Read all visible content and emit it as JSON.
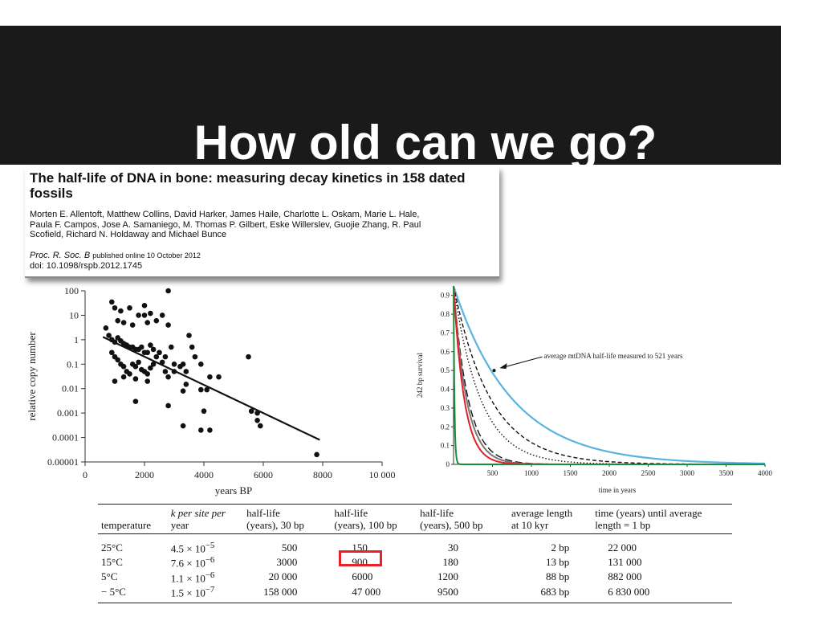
{
  "slide": {
    "title": "How old can we go?"
  },
  "paper": {
    "title": "The half-life of DNA in bone: measuring decay kinetics in 158 dated fossils",
    "authors_line1": "Morten E. Allentoft, Matthew Collins, David Harker, James Haile, Charlotte L. Oskam, Marie L. Hale,",
    "authors_line2": "Paula F. Campos, Jose A. Samaniego, M. Thomas P. Gilbert, Eske Willerslev, Guojie Zhang, R. Paul",
    "authors_line3": "Scofield, Richard N. Holdaway and Michael Bunce",
    "journal": "Proc. R. Soc. B",
    "published": "published online 10 October 2012",
    "doi": "doi: 10.1098/rspb.2012.1745"
  },
  "chart_data": [
    {
      "type": "scatter",
      "xlabel": "years BP",
      "ylabel": "relative copy number",
      "xlim": [
        0,
        10000
      ],
      "ylim": [
        1e-05,
        100
      ],
      "log_y": true,
      "x_ticks": [
        "0",
        "2000",
        "4000",
        "6000",
        "8000",
        "10 000"
      ],
      "y_ticks": [
        "100",
        "10",
        "1",
        "0.1",
        "0.01",
        "0.001",
        "0.0001",
        "0.00001"
      ],
      "points": [
        [
          2800,
          100
        ],
        [
          900,
          35
        ],
        [
          1000,
          20
        ],
        [
          1500,
          20
        ],
        [
          2000,
          25
        ],
        [
          2200,
          12
        ],
        [
          2600,
          10
        ],
        [
          1200,
          15
        ],
        [
          1800,
          10
        ],
        [
          2000,
          10
        ],
        [
          700,
          3
        ],
        [
          1100,
          6
        ],
        [
          1300,
          5
        ],
        [
          1600,
          4
        ],
        [
          2100,
          5
        ],
        [
          2400,
          6
        ],
        [
          2800,
          4
        ],
        [
          3500,
          1.5
        ],
        [
          800,
          1.5
        ],
        [
          900,
          1
        ],
        [
          1000,
          0.8
        ],
        [
          1100,
          1.2
        ],
        [
          1200,
          0.9
        ],
        [
          1300,
          0.7
        ],
        [
          1400,
          0.6
        ],
        [
          1500,
          0.5
        ],
        [
          1600,
          0.5
        ],
        [
          1700,
          0.4
        ],
        [
          1800,
          0.4
        ],
        [
          1900,
          0.5
        ],
        [
          2000,
          0.3
        ],
        [
          2100,
          0.3
        ],
        [
          2200,
          0.6
        ],
        [
          2300,
          0.4
        ],
        [
          2500,
          0.3
        ],
        [
          2700,
          0.2
        ],
        [
          2900,
          0.5
        ],
        [
          3000,
          0.1
        ],
        [
          900,
          0.3
        ],
        [
          1000,
          0.2
        ],
        [
          1100,
          0.15
        ],
        [
          1200,
          0.1
        ],
        [
          1300,
          0.08
        ],
        [
          1400,
          0.05
        ],
        [
          1500,
          0.04
        ],
        [
          1600,
          0.1
        ],
        [
          1700,
          0.08
        ],
        [
          1800,
          0.12
        ],
        [
          1900,
          0.06
        ],
        [
          2000,
          0.05
        ],
        [
          2100,
          0.04
        ],
        [
          2200,
          0.07
        ],
        [
          2300,
          0.1
        ],
        [
          2400,
          0.2
        ],
        [
          2600,
          0.12
        ],
        [
          2700,
          0.05
        ],
        [
          2800,
          0.03
        ],
        [
          3000,
          0.05
        ],
        [
          3200,
          0.08
        ],
        [
          1000,
          0.02
        ],
        [
          1300,
          0.03
        ],
        [
          1700,
          0.025
        ],
        [
          2100,
          0.02
        ],
        [
          3300,
          0.1
        ],
        [
          3400,
          0.05
        ],
        [
          3600,
          0.5
        ],
        [
          3700,
          0.2
        ],
        [
          3900,
          0.1
        ],
        [
          4200,
          0.03
        ],
        [
          4500,
          0.03
        ],
        [
          3400,
          0.015
        ],
        [
          3300,
          0.008
        ],
        [
          3900,
          0.009
        ],
        [
          4100,
          0.009
        ],
        [
          2800,
          0.002
        ],
        [
          1700,
          0.003
        ],
        [
          3300,
          0.0003
        ],
        [
          3900,
          0.0002
        ],
        [
          4200,
          0.0002
        ],
        [
          4000,
          0.0012
        ],
        [
          5500,
          0.2
        ],
        [
          5600,
          0.0012
        ],
        [
          5800,
          0.001
        ],
        [
          5800,
          0.0005
        ],
        [
          5900,
          0.0003
        ],
        [
          7800,
          2e-05
        ]
      ],
      "trend": {
        "x": [
          600,
          7900
        ],
        "y": [
          1.3,
          8e-05
        ]
      }
    },
    {
      "type": "line",
      "xlabel": "time in years",
      "ylabel": "242 bp survival",
      "xlim": [
        0,
        4000
      ],
      "ylim": [
        0,
        0.95
      ],
      "x_ticks": [
        "500",
        "1000",
        "1500",
        "2000",
        "2500",
        "3000",
        "3500",
        "4000"
      ],
      "y_ticks": [
        "0",
        "0.1",
        "0.2",
        "0.3",
        "0.4",
        "0.5",
        "0.6",
        "0.7",
        "0.8",
        "0.9"
      ],
      "annotation": {
        "text": "average mtDNA half-life measured to 521 years",
        "x": 521,
        "y": 0.5
      },
      "series": [
        {
          "color": "#5ab4e0",
          "style": "solid",
          "half_life": 521
        },
        {
          "color": "#111111",
          "style": "dashed",
          "half_life": 330
        },
        {
          "color": "#111111",
          "style": "dotted",
          "half_life": 240
        },
        {
          "color": "#111111",
          "style": "longdash",
          "half_life": 130
        },
        {
          "color": "#777777",
          "style": "solid",
          "half_life": 115
        },
        {
          "color": "#e0202a",
          "style": "solid",
          "half_life": 95
        },
        {
          "color": "#1a8f3a",
          "style": "solid",
          "half_life": 8
        }
      ]
    }
  ],
  "table": {
    "headers": [
      [
        "temperature"
      ],
      [
        "k per site per",
        "year"
      ],
      [
        "half-life",
        "(years), 30 bp"
      ],
      [
        "half-life",
        "(years), 100 bp"
      ],
      [
        "half-life",
        "(years), 500 bp"
      ],
      [
        "average length",
        "at 10 kyr"
      ],
      [
        "time (years) until average",
        "length = 1 bp"
      ]
    ],
    "rows": [
      {
        "temp": "25°C",
        "k_base": "4.5 × 10",
        "k_exp": "−5",
        "hl30": "500",
        "hl100": "150",
        "hl500": "30",
        "avg": "2 bp",
        "time": "22 000"
      },
      {
        "temp": "15°C",
        "k_base": "7.6 × 10",
        "k_exp": "−6",
        "hl30": "3000",
        "hl100": "900",
        "hl500": "180",
        "avg": "13 bp",
        "time": "131 000"
      },
      {
        "temp": "5°C",
        "k_base": "1.1 × 10",
        "k_exp": "−6",
        "hl30": "20 000",
        "hl100": "6000",
        "hl500": "1200",
        "avg": "88 bp",
        "time": "882 000"
      },
      {
        "temp": "− 5°C",
        "k_base": "1.5 × 10",
        "k_exp": "−7",
        "hl30": "158 000",
        "hl100": "47 000",
        "hl500": "9500",
        "avg": "683 bp",
        "time": "6 830 000"
      }
    ],
    "highlight_color": "#e8202a"
  }
}
